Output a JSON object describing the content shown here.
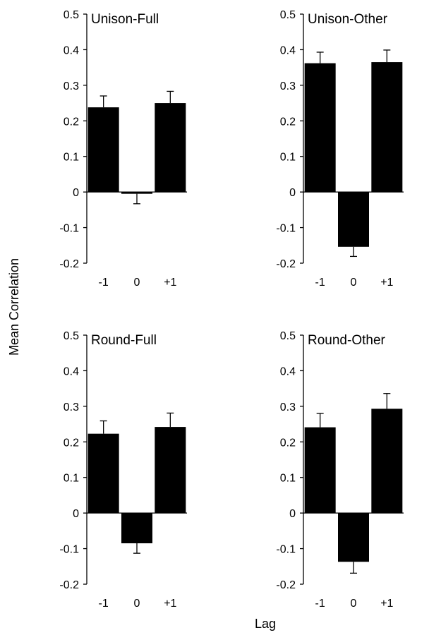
{
  "figure": {
    "ylabel": "Mean Correlation",
    "xlabel": "Lag"
  },
  "colors": {
    "bar": "#000000",
    "axis": "#000000",
    "background": "#ffffff"
  },
  "chart_data": [
    {
      "type": "bar",
      "title": "Unison-Full",
      "categories": [
        "-1",
        "0",
        "+1"
      ],
      "values": [
        0.238,
        -0.005,
        0.25
      ],
      "errors": [
        0.032,
        0.028,
        0.033
      ],
      "ylim": [
        -0.2,
        0.5
      ],
      "yticks": [
        "0.5",
        "0.4",
        "0.3",
        "0.2",
        "0.1",
        "0",
        "-0.1",
        "-0.2"
      ],
      "grid": false
    },
    {
      "type": "bar",
      "title": "Unison-Other",
      "categories": [
        "-1",
        "0",
        "+1"
      ],
      "values": [
        0.362,
        -0.154,
        0.365
      ],
      "errors": [
        0.031,
        0.027,
        0.034
      ],
      "ylim": [
        -0.2,
        0.5
      ],
      "yticks": [
        "0.5",
        "0.4",
        "0.3",
        "0.2",
        "0.1",
        "0",
        "-0.1",
        "-0.2"
      ],
      "grid": false
    },
    {
      "type": "bar",
      "title": "Round-Full",
      "categories": [
        "-1",
        "0",
        "+1"
      ],
      "values": [
        0.223,
        -0.085,
        0.242
      ],
      "errors": [
        0.036,
        0.028,
        0.039
      ],
      "ylim": [
        -0.2,
        0.5
      ],
      "yticks": [
        "0.5",
        "0.4",
        "0.3",
        "0.2",
        "0.1",
        "0",
        "-0.1",
        "-0.2"
      ],
      "grid": false
    },
    {
      "type": "bar",
      "title": "Round-Other",
      "categories": [
        "-1",
        "0",
        "+1"
      ],
      "values": [
        0.241,
        -0.137,
        0.293
      ],
      "errors": [
        0.039,
        0.032,
        0.043
      ],
      "ylim": [
        -0.2,
        0.5
      ],
      "yticks": [
        "0.5",
        "0.4",
        "0.3",
        "0.2",
        "0.1",
        "0",
        "-0.1",
        "-0.2"
      ],
      "grid": false
    }
  ]
}
